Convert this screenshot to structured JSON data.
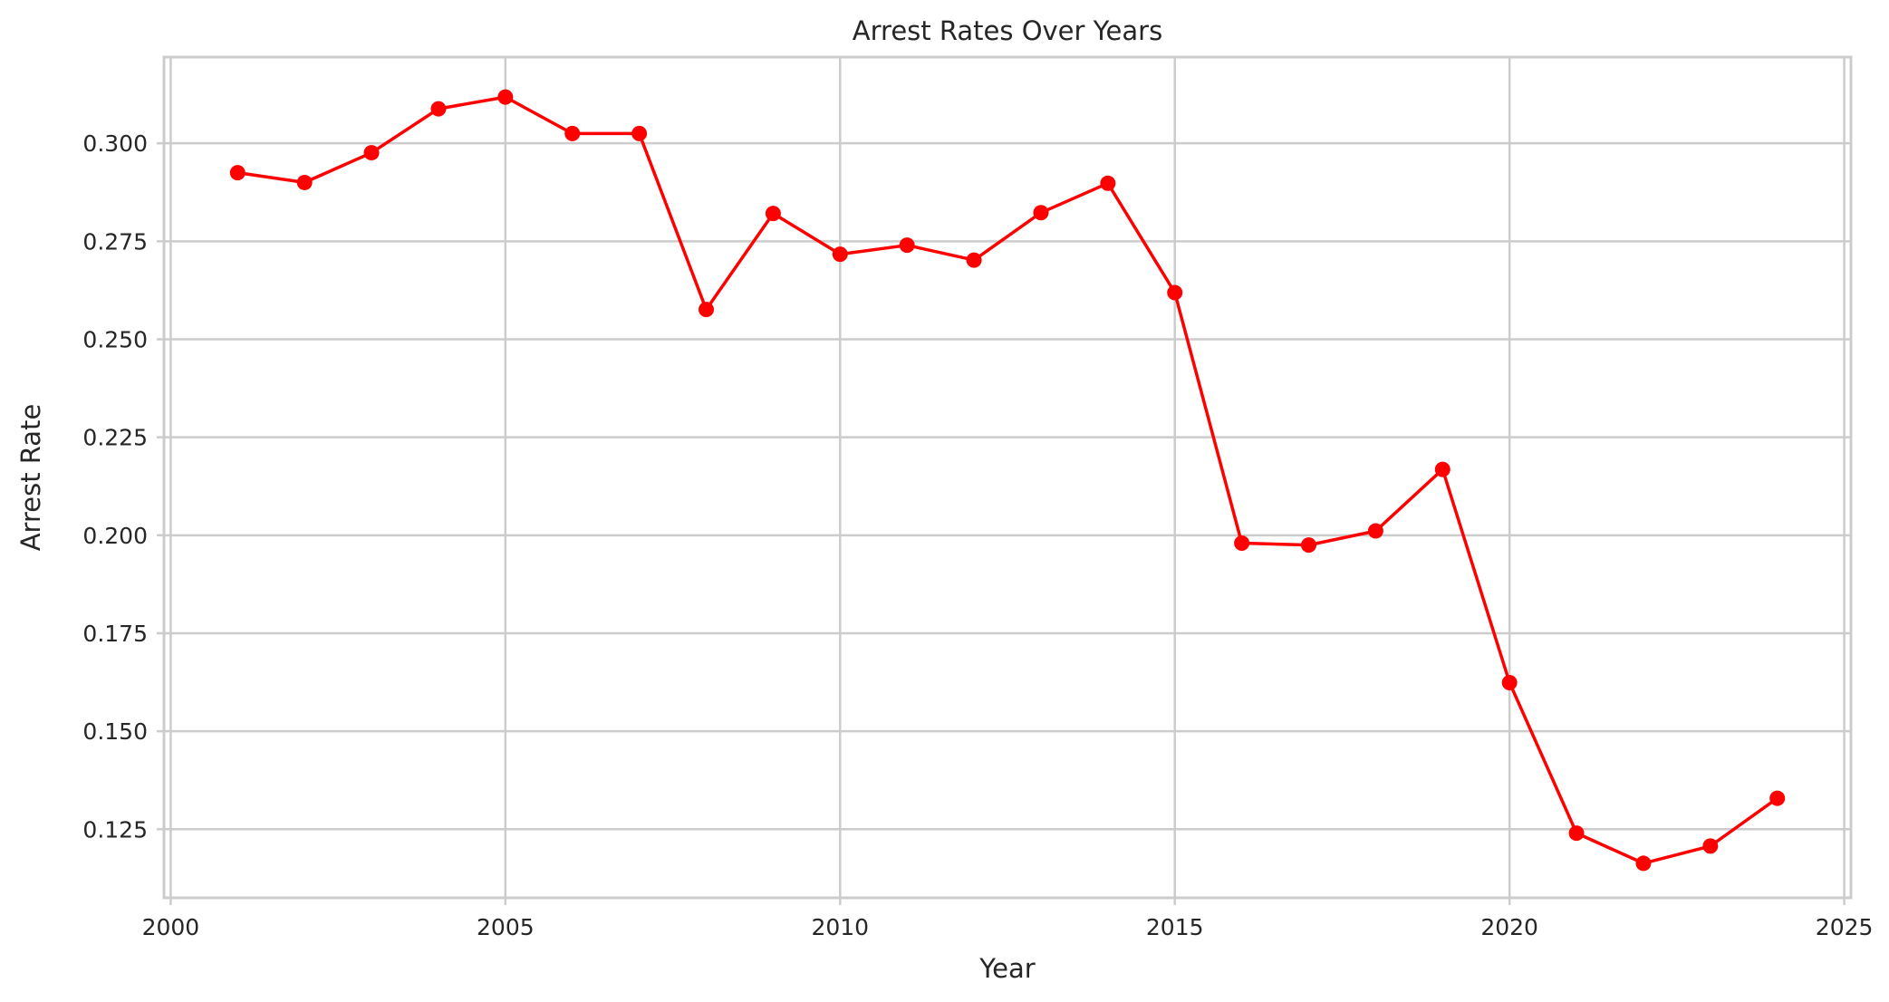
{
  "chart_data": {
    "type": "line",
    "title": "Arrest Rates Over Years",
    "xlabel": "Year",
    "ylabel": "Arrest Rate",
    "xlim": [
      1999.9,
      2025.1
    ],
    "ylim": [
      0.1075,
      0.322
    ],
    "xticks": [
      2000,
      2005,
      2010,
      2015,
      2020,
      2025
    ],
    "xtick_labels": [
      "2000",
      "2005",
      "2010",
      "2015",
      "2020",
      "2025"
    ],
    "yticks": [
      0.125,
      0.15,
      0.175,
      0.2,
      0.225,
      0.25,
      0.275,
      0.3
    ],
    "ytick_labels": [
      "0.125",
      "0.150",
      "0.175",
      "0.200",
      "0.225",
      "0.250",
      "0.275",
      "0.300"
    ],
    "grid": true,
    "line_color": "#ff0000",
    "marker": "circle",
    "series": [
      {
        "x": [
          2001,
          2002,
          2003,
          2004,
          2005,
          2006,
          2007,
          2008,
          2009,
          2010,
          2011,
          2012,
          2013,
          2014,
          2015,
          2016,
          2017,
          2018,
          2019,
          2020,
          2021,
          2022,
          2023,
          2024
        ],
        "values": [
          0.2925,
          0.29,
          0.2976,
          0.3088,
          0.3118,
          0.3025,
          0.3025,
          0.2576,
          0.2821,
          0.2717,
          0.274,
          0.2702,
          0.2823,
          0.2898,
          0.2619,
          0.198,
          0.1975,
          0.2011,
          0.2168,
          0.1624,
          0.124,
          0.1163,
          0.1207,
          0.1329
        ]
      }
    ]
  }
}
